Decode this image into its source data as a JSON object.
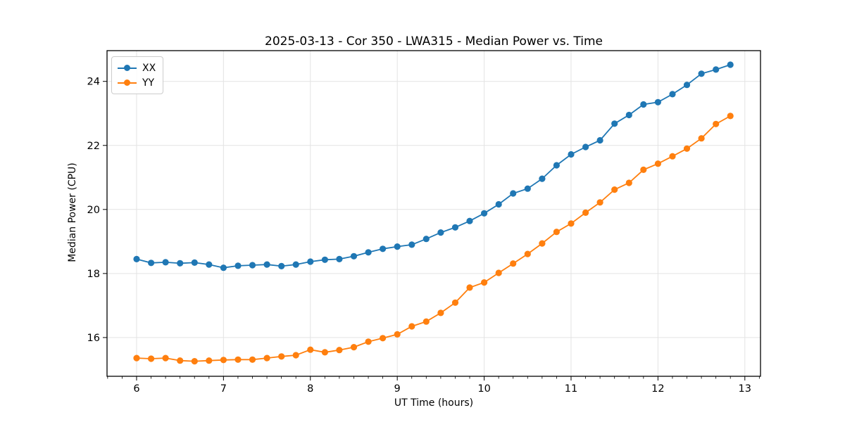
{
  "chart_data": {
    "type": "line",
    "title": "2025-03-13 - Cor 350 - LWA315 - Median Power vs. Time",
    "xlabel": "UT Time (hours)",
    "ylabel": "Median Power (CPU)",
    "xlim": [
      5.66,
      13.18
    ],
    "ylim": [
      14.79,
      24.96
    ],
    "xticks": [
      6,
      7,
      8,
      9,
      10,
      11,
      12,
      13
    ],
    "yticks": [
      16,
      18,
      20,
      22,
      24
    ],
    "x_minor_tick_step_hours": 0.1667,
    "grid": true,
    "legend_position": "upper-left",
    "x": [
      6.0,
      6.167,
      6.333,
      6.5,
      6.667,
      6.833,
      7.0,
      7.167,
      7.333,
      7.5,
      7.667,
      7.833,
      8.0,
      8.167,
      8.333,
      8.5,
      8.667,
      8.833,
      9.0,
      9.167,
      9.333,
      9.5,
      9.667,
      9.833,
      10.0,
      10.167,
      10.333,
      10.5,
      10.667,
      10.833,
      11.0,
      11.167,
      11.333,
      11.5,
      11.667,
      11.833,
      12.0,
      12.167,
      12.333,
      12.5,
      12.667,
      12.833
    ],
    "series": [
      {
        "name": "XX",
        "color": "#1f77b4",
        "values": [
          18.45,
          18.33,
          18.35,
          18.32,
          18.34,
          18.28,
          18.18,
          18.24,
          18.26,
          18.28,
          18.23,
          18.28,
          18.37,
          18.43,
          18.45,
          18.54,
          18.66,
          18.77,
          18.84,
          18.9,
          19.08,
          19.28,
          19.44,
          19.64,
          19.88,
          20.16,
          20.5,
          20.65,
          20.96,
          21.38,
          21.72,
          21.95,
          22.16,
          22.68,
          22.95,
          23.28,
          23.35,
          23.6,
          23.89,
          24.24,
          24.37,
          24.52
        ]
      },
      {
        "name": "YY",
        "color": "#ff7f0e",
        "values": [
          15.36,
          15.34,
          15.36,
          15.28,
          15.26,
          15.28,
          15.3,
          15.31,
          15.31,
          15.36,
          15.41,
          15.45,
          15.62,
          15.54,
          15.61,
          15.7,
          15.87,
          15.98,
          16.1,
          16.35,
          16.5,
          16.77,
          17.09,
          17.56,
          17.72,
          18.02,
          18.31,
          18.61,
          18.94,
          19.3,
          19.56,
          19.9,
          20.22,
          20.62,
          20.83,
          21.24,
          21.43,
          21.66,
          21.9,
          22.22,
          22.67,
          22.92
        ]
      }
    ]
  }
}
